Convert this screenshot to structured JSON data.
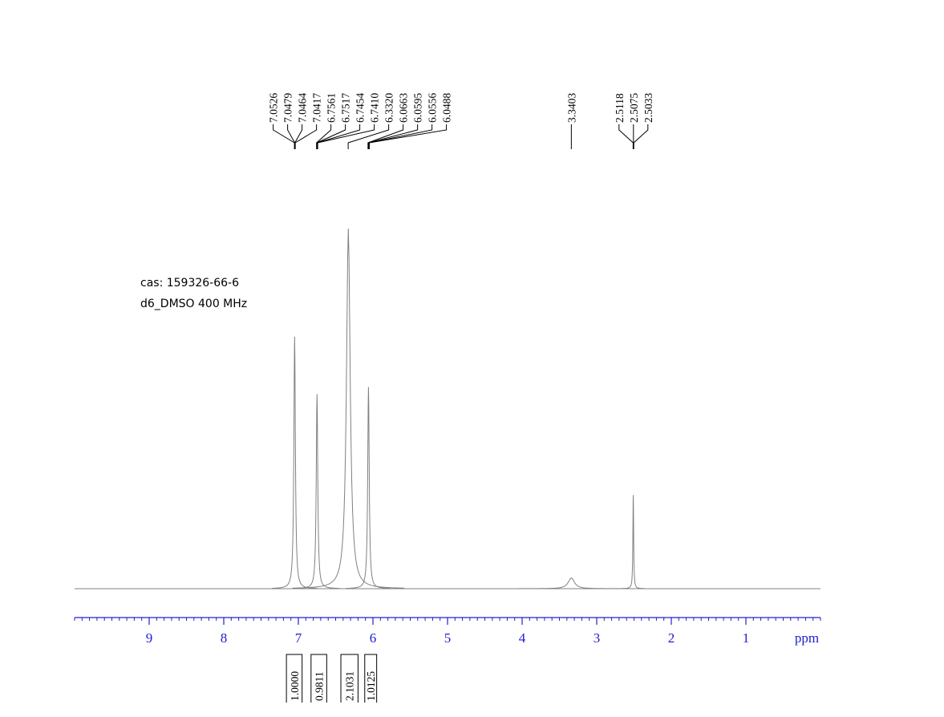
{
  "chart_data": {
    "type": "spectrum",
    "annotations": [
      "cas:  159326-66-6",
      "d6_DMSO   400  MHz"
    ],
    "x": [
      7.05,
      6.75,
      6.33,
      6.06,
      3.34,
      2.51
    ],
    "values": [
      70,
      54,
      100,
      56,
      3,
      26
    ],
    "widths": [
      0.012,
      0.012,
      0.03,
      0.012,
      0.05,
      0.006
    ],
    "color": "#808080",
    "xlim": [
      10,
      0
    ],
    "ylim": [
      0,
      100
    ],
    "xticks": [
      9,
      8,
      7,
      6,
      5,
      4,
      3,
      2,
      1
    ],
    "xminor": 0.1,
    "xlabel": "ppm",
    "axis_color": "#2020d0",
    "peak_labels": [
      "7.0526",
      "7.0479",
      "7.0464",
      "7.0417",
      "6.7561",
      "6.7517",
      "6.7454",
      "6.7410",
      "6.3320",
      "6.0663",
      "6.0595",
      "6.0556",
      "6.0488",
      "3.3403",
      "2.5118",
      "2.5075",
      "2.5033"
    ],
    "integrals": {
      "values": [
        1,
        0.9811,
        2.1031,
        1.0125
      ],
      "value_labels": [
        "1.0000",
        "0.9811",
        "2.1031",
        "1.0125"
      ],
      "ranges": [
        [
          7.16,
          6.95
        ],
        [
          6.83,
          6.62
        ],
        [
          6.43,
          6.2
        ],
        [
          6.11,
          5.95
        ]
      ]
    }
  }
}
